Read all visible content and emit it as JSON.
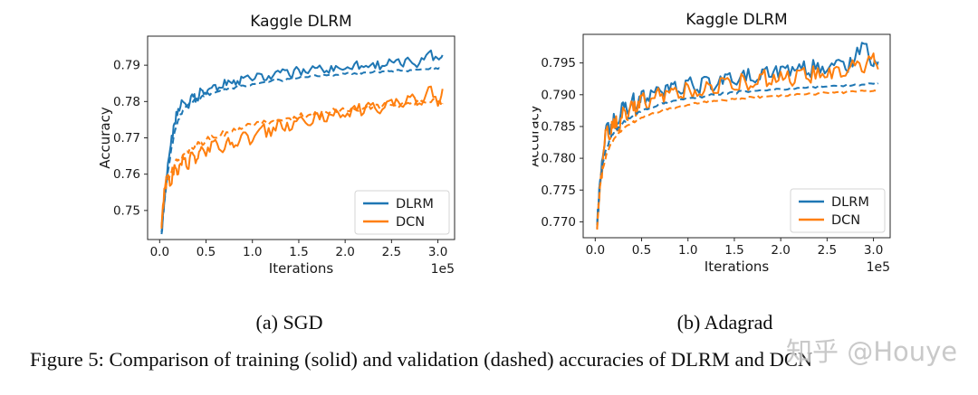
{
  "figure": {
    "caption": "Figure 5: Comparison of training (solid) and validation (dashed) accuracies of DLRM and DCN",
    "subcaptions": [
      "(a) SGD",
      "(b) Adagrad"
    ]
  },
  "watermark": {
    "text": "知乎 @Houye",
    "color": "#bababa"
  },
  "colors": {
    "dlrm": "#1f77b4",
    "dcn": "#ff7f0e",
    "axis": "#262626",
    "legend_border": "#d4d4d4"
  },
  "chart_data": [
    {
      "id": "sgd",
      "type": "line",
      "title": "Kaggle DLRM",
      "xlabel": "Iterations",
      "ylabel": "Accuracy",
      "x_offset_label": "1e5",
      "x_unit": "iterations (×1e5)",
      "xlim": [
        -0.13,
        3.18
      ],
      "ylim": [
        0.742,
        0.798
      ],
      "xticks": [
        0.0,
        0.5,
        1.0,
        1.5,
        2.0,
        2.5,
        3.0
      ],
      "xtick_labels": [
        "0.0",
        "0.5",
        "1.0",
        "1.5",
        "2.0",
        "2.5",
        "3.0"
      ],
      "yticks": [
        0.75,
        0.76,
        0.77,
        0.78,
        0.79
      ],
      "ytick_labels": [
        "0.75",
        "0.76",
        "0.77",
        "0.78",
        "0.79"
      ],
      "legend": [
        {
          "label": "DLRM",
          "color": "#1f77b4"
        },
        {
          "label": "DCN",
          "color": "#ff7f0e"
        }
      ],
      "legend_position": "lower right",
      "grid": false,
      "x": [
        0.02,
        0.05,
        0.08,
        0.12,
        0.16,
        0.2,
        0.25,
        0.3,
        0.35,
        0.4,
        0.45,
        0.5,
        0.58,
        0.66,
        0.74,
        0.82,
        0.9,
        1.0,
        1.1,
        1.2,
        1.3,
        1.4,
        1.5,
        1.6,
        1.7,
        1.8,
        1.9,
        2.0,
        2.1,
        2.2,
        2.3,
        2.4,
        2.5,
        2.6,
        2.7,
        2.8,
        2.9,
        3.0,
        3.05
      ],
      "series": [
        {
          "name": "DLRM training",
          "legend": "DLRM",
          "color": "#1f77b4",
          "style": "solid",
          "noise": 0.0013,
          "y": [
            0.7435,
            0.752,
            0.76,
            0.768,
            0.774,
            0.778,
            0.78,
            0.7785,
            0.782,
            0.7808,
            0.7832,
            0.782,
            0.7845,
            0.7838,
            0.7858,
            0.7846,
            0.7865,
            0.7858,
            0.7875,
            0.7862,
            0.788,
            0.7872,
            0.7888,
            0.7878,
            0.7893,
            0.7885,
            0.7898,
            0.789,
            0.7903,
            0.7895,
            0.7906,
            0.7898,
            0.791,
            0.7902,
            0.7913,
            0.7905,
            0.7935,
            0.7918,
            0.7928
          ]
        },
        {
          "name": "DLRM validation",
          "legend": "DLRM",
          "color": "#1f77b4",
          "style": "dashed",
          "noise": 0.0004,
          "y": [
            0.744,
            0.752,
            0.759,
            0.766,
            0.7715,
            0.775,
            0.7775,
            0.779,
            0.78,
            0.7807,
            0.7813,
            0.7818,
            0.7825,
            0.7831,
            0.7836,
            0.784,
            0.7844,
            0.7848,
            0.7852,
            0.7856,
            0.7859,
            0.7862,
            0.7865,
            0.7867,
            0.787,
            0.7872,
            0.7874,
            0.7876,
            0.7878,
            0.788,
            0.7881,
            0.7883,
            0.7884,
            0.7885,
            0.7887,
            0.7888,
            0.7889,
            0.789,
            0.7888
          ]
        },
        {
          "name": "DCN training",
          "legend": "DCN",
          "color": "#ff7f0e",
          "style": "solid",
          "noise": 0.0016,
          "y": [
            0.7455,
            0.756,
            0.7595,
            0.757,
            0.7625,
            0.76,
            0.765,
            0.7615,
            0.766,
            0.764,
            0.7675,
            0.765,
            0.769,
            0.7665,
            0.77,
            0.768,
            0.7715,
            0.769,
            0.773,
            0.7705,
            0.7745,
            0.772,
            0.7755,
            0.7735,
            0.7768,
            0.7745,
            0.7778,
            0.7758,
            0.7788,
            0.7768,
            0.7796,
            0.7778,
            0.7805,
            0.7788,
            0.7812,
            0.7795,
            0.784,
            0.7788,
            0.7835
          ]
        },
        {
          "name": "DCN validation",
          "legend": "DCN",
          "color": "#ff7f0e",
          "style": "dashed",
          "noise": 0.0009,
          "y": [
            0.745,
            0.7545,
            0.758,
            0.7605,
            0.7625,
            0.764,
            0.7653,
            0.7663,
            0.7672,
            0.768,
            0.7687,
            0.7693,
            0.7701,
            0.7708,
            0.7715,
            0.7721,
            0.7727,
            0.7733,
            0.7739,
            0.7744,
            0.7749,
            0.7754,
            0.7758,
            0.7762,
            0.7766,
            0.777,
            0.7773,
            0.7776,
            0.7779,
            0.7782,
            0.7785,
            0.7787,
            0.779,
            0.7792,
            0.7794,
            0.7796,
            0.7798,
            0.78,
            0.7795
          ]
        }
      ]
    },
    {
      "id": "adagrad",
      "type": "line",
      "title": "Kaggle DLRM",
      "xlabel": "Iterations",
      "ylabel": "Accuracy",
      "x_offset_label": "1e5",
      "x_unit": "iterations (×1e5)",
      "xlim": [
        -0.13,
        3.18
      ],
      "ylim": [
        0.7675,
        0.7995
      ],
      "xticks": [
        0.0,
        0.5,
        1.0,
        1.5,
        2.0,
        2.5,
        3.0
      ],
      "xtick_labels": [
        "0.0",
        "0.5",
        "1.0",
        "1.5",
        "2.0",
        "2.5",
        "3.0"
      ],
      "yticks": [
        0.77,
        0.775,
        0.78,
        0.785,
        0.79,
        0.795
      ],
      "ytick_labels": [
        "0.770",
        "0.775",
        "0.780",
        "0.785",
        "0.790",
        "0.795"
      ],
      "legend": [
        {
          "label": "DLRM",
          "color": "#1f77b4"
        },
        {
          "label": "DCN",
          "color": "#ff7f0e"
        }
      ],
      "legend_position": "lower right",
      "grid": false,
      "x": [
        0.02,
        0.05,
        0.08,
        0.12,
        0.16,
        0.2,
        0.25,
        0.3,
        0.35,
        0.4,
        0.45,
        0.5,
        0.58,
        0.66,
        0.74,
        0.82,
        0.9,
        1.0,
        1.1,
        1.2,
        1.3,
        1.4,
        1.5,
        1.6,
        1.7,
        1.8,
        1.9,
        2.0,
        2.1,
        2.2,
        2.3,
        2.4,
        2.5,
        2.6,
        2.7,
        2.8,
        2.9,
        3.0,
        3.05
      ],
      "series": [
        {
          "name": "DLRM training",
          "legend": "DLRM",
          "color": "#1f77b4",
          "style": "solid",
          "noise": 0.0013,
          "y": [
            0.769,
            0.776,
            0.78,
            0.7852,
            0.7838,
            0.787,
            0.7855,
            0.7888,
            0.787,
            0.7895,
            0.788,
            0.7905,
            0.789,
            0.7912,
            0.7898,
            0.7918,
            0.7905,
            0.7922,
            0.7908,
            0.7928,
            0.7912,
            0.7932,
            0.7918,
            0.7938,
            0.7922,
            0.794,
            0.7928,
            0.7944,
            0.793,
            0.7948,
            0.7934,
            0.795,
            0.7938,
            0.7954,
            0.794,
            0.7956,
            0.798,
            0.7945,
            0.7952
          ]
        },
        {
          "name": "DCN training",
          "legend": "DCN",
          "color": "#ff7f0e",
          "style": "solid",
          "noise": 0.0013,
          "y": [
            0.7688,
            0.7752,
            0.7792,
            0.7845,
            0.783,
            0.7862,
            0.7845,
            0.788,
            0.786,
            0.7888,
            0.787,
            0.7898,
            0.788,
            0.7905,
            0.7888,
            0.791,
            0.7895,
            0.7915,
            0.7898,
            0.792,
            0.7903,
            0.7924,
            0.7908,
            0.7928,
            0.7912,
            0.7932,
            0.7916,
            0.7936,
            0.792,
            0.7938,
            0.7924,
            0.7942,
            0.7928,
            0.7944,
            0.793,
            0.7946,
            0.7935,
            0.7965,
            0.794
          ]
        },
        {
          "name": "DLRM validation",
          "legend": "DLRM",
          "color": "#1f77b4",
          "style": "dashed",
          "noise": 0.0002,
          "y": [
            0.7695,
            0.7762,
            0.7792,
            0.7815,
            0.783,
            0.784,
            0.7849,
            0.7856,
            0.7862,
            0.7866,
            0.787,
            0.7874,
            0.7878,
            0.7882,
            0.7886,
            0.7889,
            0.7891,
            0.7894,
            0.7896,
            0.7898,
            0.79,
            0.7902,
            0.7903,
            0.7905,
            0.7906,
            0.7907,
            0.7908,
            0.7909,
            0.791,
            0.7911,
            0.7912,
            0.7913,
            0.7913,
            0.7914,
            0.7915,
            0.7916,
            0.7916,
            0.7917,
            0.7918
          ]
        },
        {
          "name": "DCN validation",
          "legend": "DCN",
          "color": "#ff7f0e",
          "style": "dashed",
          "noise": 0.0002,
          "y": [
            0.769,
            0.7755,
            0.7783,
            0.7806,
            0.782,
            0.783,
            0.7839,
            0.7846,
            0.7852,
            0.7856,
            0.786,
            0.7864,
            0.7868,
            0.7872,
            0.7876,
            0.7879,
            0.7881,
            0.7884,
            0.7886,
            0.7888,
            0.789,
            0.7891,
            0.7893,
            0.7894,
            0.7896,
            0.7897,
            0.7898,
            0.7899,
            0.79,
            0.7901,
            0.7902,
            0.7902,
            0.7903,
            0.7904,
            0.7904,
            0.7905,
            0.7906,
            0.7906,
            0.7905
          ]
        }
      ]
    }
  ]
}
